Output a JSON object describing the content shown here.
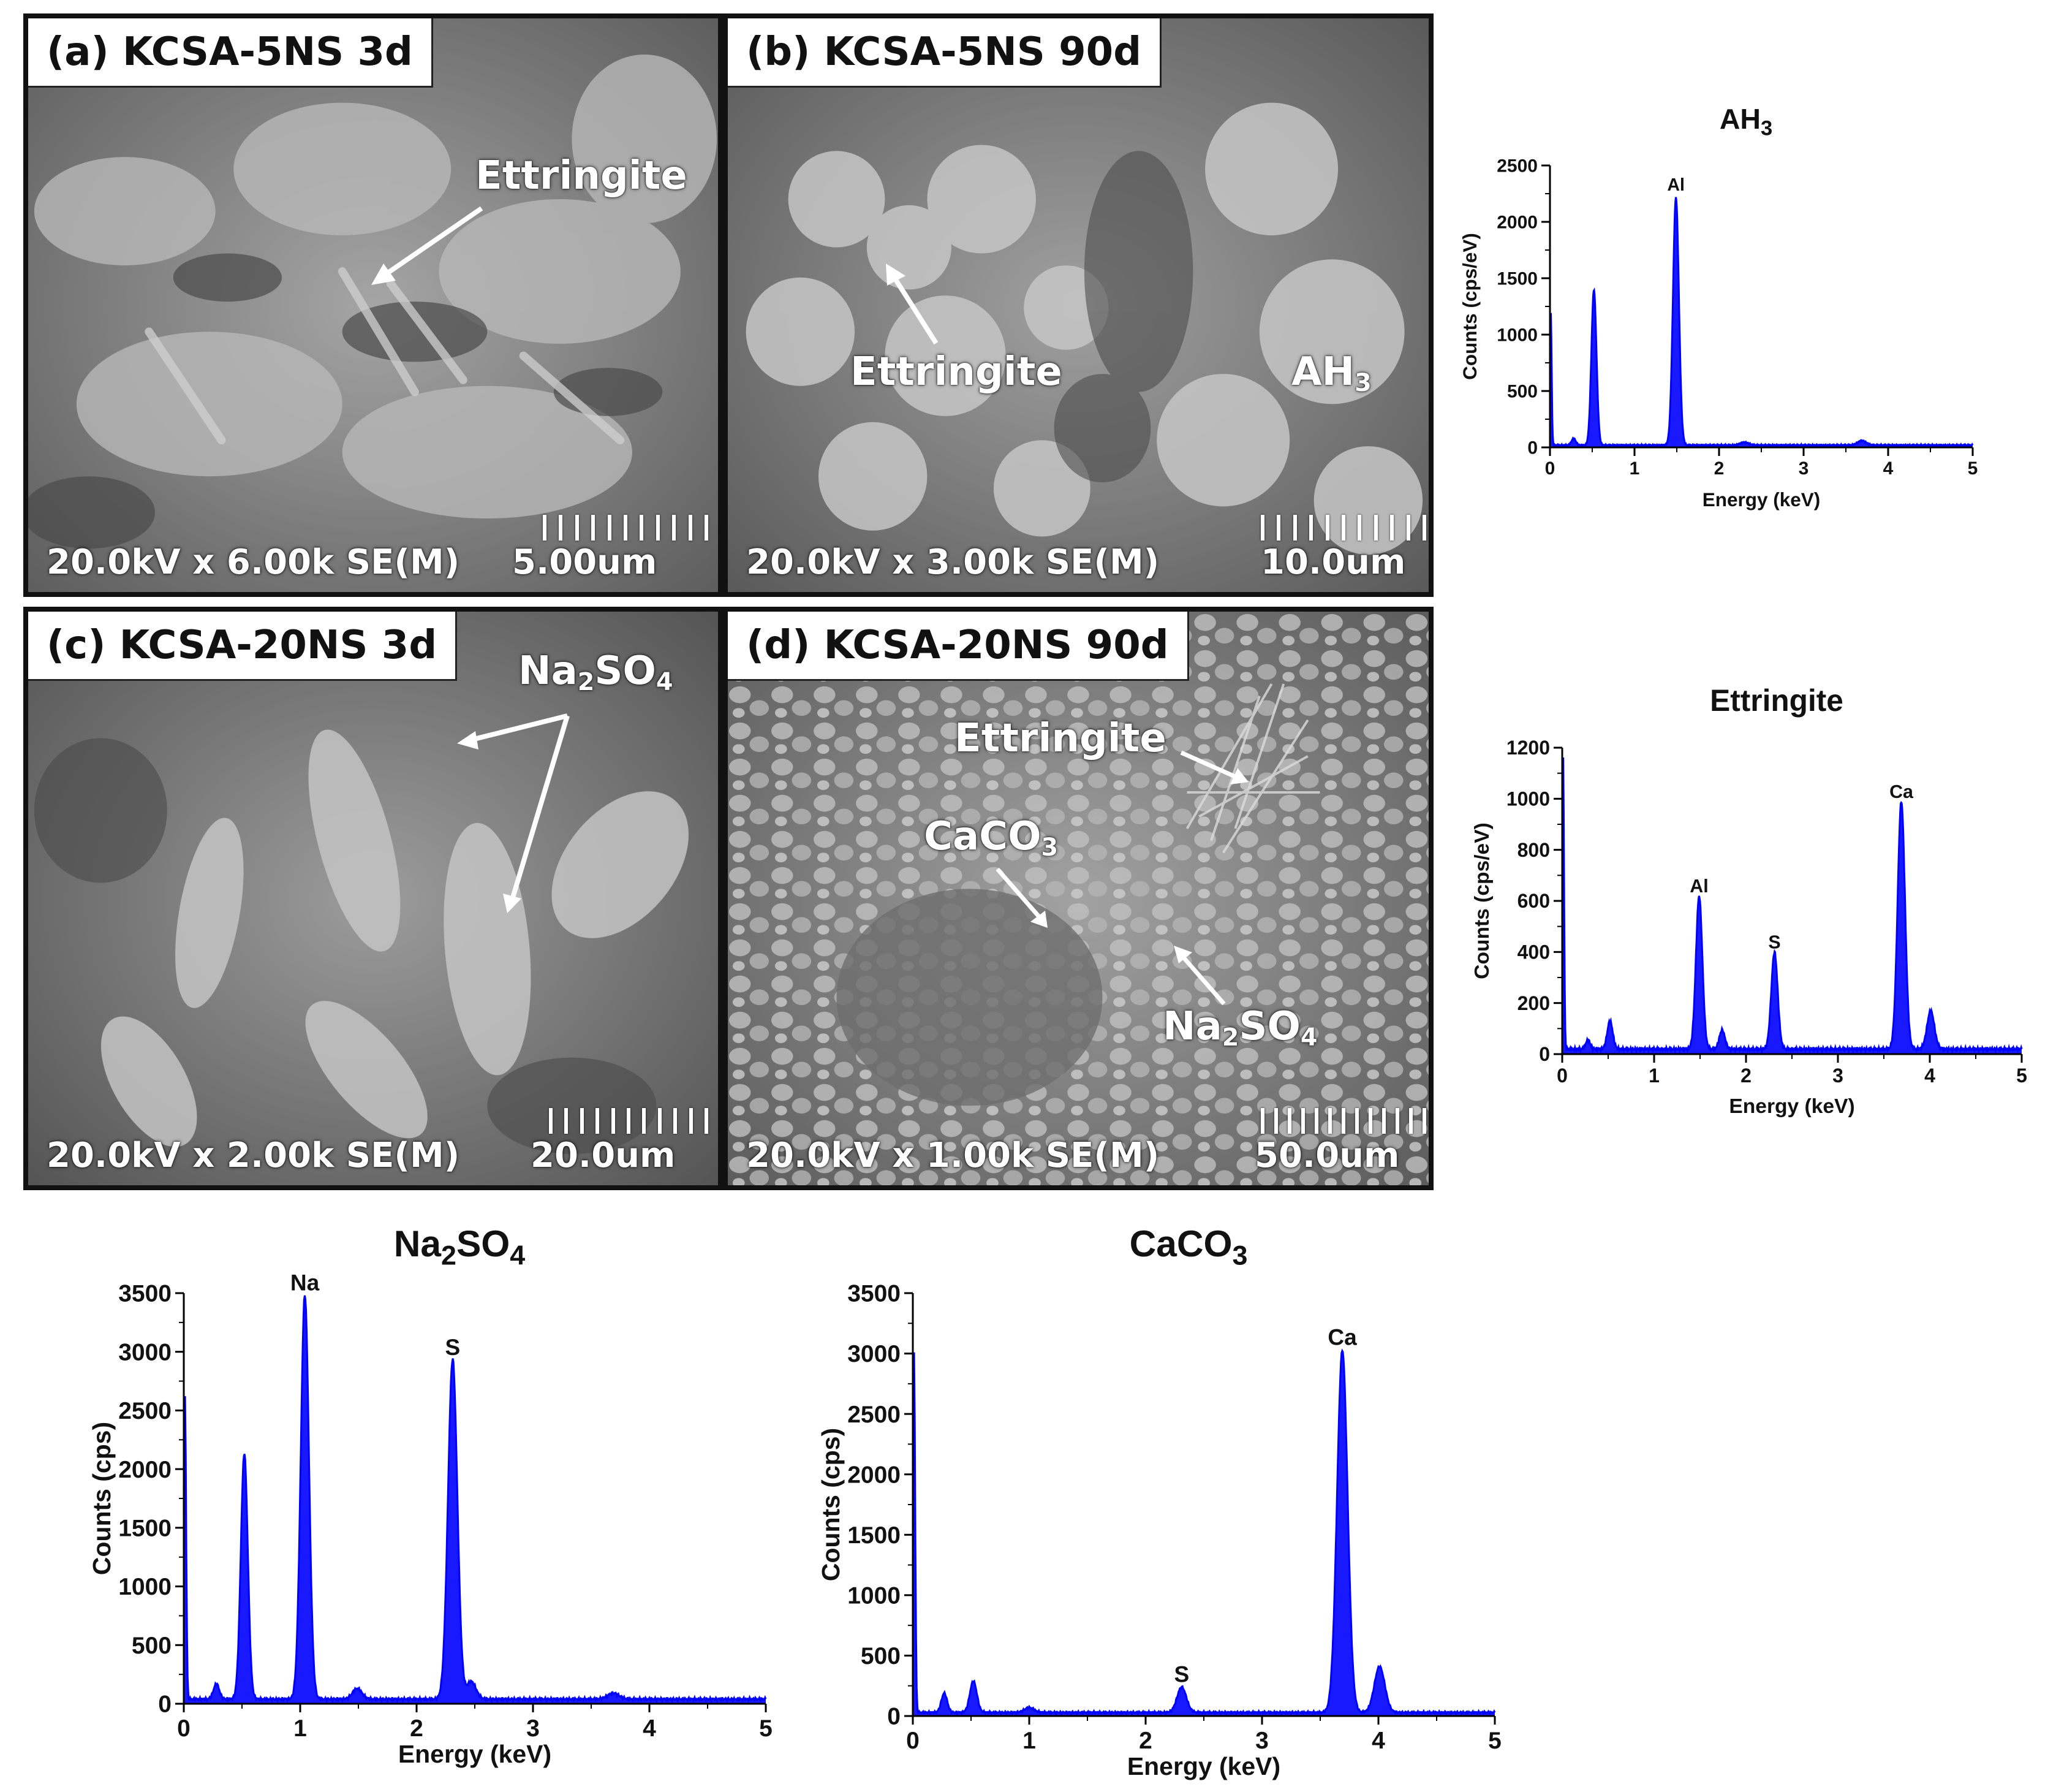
{
  "panels": {
    "a": {
      "label": "(a) KCSA-5NS 3d",
      "magnification": "20.0kV x 6.00k SE(M)",
      "scalebar": "5.00um",
      "annotations": {
        "ettringite": "Ettringite"
      }
    },
    "b": {
      "label": "(b) KCSA-5NS 90d",
      "magnification": "20.0kV x 3.00k SE(M)",
      "scalebar": "10.0um",
      "annotations": {
        "ettringite": "Ettringite",
        "ah3": "AH",
        "ah3_sub": "3"
      }
    },
    "c": {
      "label": "(c) KCSA-20NS 3d",
      "magnification": "20.0kV x 2.00k SE(M)",
      "scalebar": "20.0um",
      "annotations": {
        "na2so4_a": "Na",
        "na2so4_sub1": "2",
        "na2so4_b": "SO",
        "na2so4_sub2": "4"
      }
    },
    "d": {
      "label": "(d) KCSA-20NS 90d",
      "magnification": "20.0kV x 1.00k SE(M)",
      "scalebar": "50.0um",
      "annotations": {
        "ettringite": "Ettringite",
        "caco3_a": "CaCO",
        "caco3_sub": "3",
        "na2so4_a": "Na",
        "na2so4_sub1": "2",
        "na2so4_b": "SO",
        "na2so4_sub2": "4"
      }
    }
  },
  "chart_data": [
    {
      "type": "line",
      "id": "AH3",
      "title": "AH3",
      "title_main": "AH",
      "title_sub": "3",
      "xlabel": "Energy (keV)",
      "ylabel": "Counts (cps/eV)",
      "xlim": [
        0,
        5
      ],
      "ylim": [
        0,
        2500
      ],
      "xticks": [
        0,
        1,
        2,
        3,
        4,
        5
      ],
      "yticks": [
        0,
        500,
        1000,
        1500,
        2000,
        2500
      ],
      "color": "#0000ff",
      "baseline": 20,
      "peaks": [
        {
          "x": 0.01,
          "y": 1180,
          "w": 0.01
        },
        {
          "x": 0.28,
          "y": 60,
          "w": 0.025
        },
        {
          "x": 0.52,
          "y": 1380,
          "w": 0.03
        },
        {
          "x": 1.49,
          "y": 2200,
          "w": 0.035
        },
        {
          "x": 2.3,
          "y": 25,
          "w": 0.05
        },
        {
          "x": 3.69,
          "y": 40,
          "w": 0.05
        }
      ],
      "peak_labels": [
        {
          "text": "Al",
          "x": 1.49,
          "y": 2200
        }
      ]
    },
    {
      "type": "line",
      "id": "Ettringite",
      "title": "Ettringite",
      "title_main": "Ettringite",
      "title_sub": "",
      "xlabel": "Energy (keV)",
      "ylabel": "Counts (cps/eV)",
      "xlim": [
        0,
        5
      ],
      "ylim": [
        0,
        1200
      ],
      "xticks": [
        0,
        1,
        2,
        3,
        4,
        5
      ],
      "yticks": [
        0,
        200,
        400,
        600,
        800,
        1000,
        1200
      ],
      "color": "#0000ff",
      "baseline": 20,
      "peaks": [
        {
          "x": 0.01,
          "y": 1150,
          "w": 0.01
        },
        {
          "x": 0.28,
          "y": 35,
          "w": 0.025
        },
        {
          "x": 0.52,
          "y": 110,
          "w": 0.03
        },
        {
          "x": 1.49,
          "y": 600,
          "w": 0.035
        },
        {
          "x": 1.74,
          "y": 75,
          "w": 0.03
        },
        {
          "x": 2.31,
          "y": 380,
          "w": 0.035
        },
        {
          "x": 3.69,
          "y": 970,
          "w": 0.04
        },
        {
          "x": 4.01,
          "y": 150,
          "w": 0.04
        }
      ],
      "peak_labels": [
        {
          "text": "Al",
          "x": 1.49,
          "y": 600
        },
        {
          "text": "S",
          "x": 2.31,
          "y": 380
        },
        {
          "text": "Ca",
          "x": 3.69,
          "y": 970
        }
      ]
    },
    {
      "type": "line",
      "id": "Na2SO4",
      "title": "Na2SO4",
      "title_main": "Na",
      "title_sub": "2",
      "title_main2": "SO",
      "title_sub2": "4",
      "xlabel": "Energy (keV)",
      "ylabel": "Counts (cps)",
      "xlim": [
        0,
        5
      ],
      "ylim": [
        0,
        3500
      ],
      "xticks": [
        0,
        1,
        2,
        3,
        4,
        5
      ],
      "yticks": [
        0,
        500,
        1000,
        1500,
        2000,
        2500,
        3000,
        3500
      ],
      "color": "#0000ff",
      "baseline": 40,
      "peaks": [
        {
          "x": 0.01,
          "y": 2600,
          "w": 0.01
        },
        {
          "x": 0.28,
          "y": 130,
          "w": 0.025
        },
        {
          "x": 0.52,
          "y": 2100,
          "w": 0.03
        },
        {
          "x": 1.04,
          "y": 3450,
          "w": 0.035
        },
        {
          "x": 1.49,
          "y": 90,
          "w": 0.04
        },
        {
          "x": 2.31,
          "y": 2900,
          "w": 0.04
        },
        {
          "x": 2.47,
          "y": 150,
          "w": 0.04
        },
        {
          "x": 3.69,
          "y": 50,
          "w": 0.05
        }
      ],
      "peak_labels": [
        {
          "text": "Na",
          "x": 1.04,
          "y": 3450
        },
        {
          "text": "S",
          "x": 2.31,
          "y": 2900
        }
      ]
    },
    {
      "type": "line",
      "id": "CaCO3",
      "title": "CaCO3",
      "title_main": "CaCO",
      "title_sub": "3",
      "xlabel": "Energy (keV)",
      "ylabel": "Counts (cps)",
      "xlim": [
        0,
        5
      ],
      "ylim": [
        0,
        3500
      ],
      "xticks": [
        0,
        1,
        2,
        3,
        4,
        5
      ],
      "yticks": [
        0,
        500,
        1000,
        1500,
        2000,
        2500,
        3000,
        3500
      ],
      "color": "#0000ff",
      "baseline": 30,
      "peaks": [
        {
          "x": 0.01,
          "y": 3000,
          "w": 0.01
        },
        {
          "x": 0.27,
          "y": 160,
          "w": 0.025
        },
        {
          "x": 0.52,
          "y": 260,
          "w": 0.03
        },
        {
          "x": 1.0,
          "y": 40,
          "w": 0.04
        },
        {
          "x": 2.31,
          "y": 210,
          "w": 0.04
        },
        {
          "x": 3.69,
          "y": 3000,
          "w": 0.045
        },
        {
          "x": 4.01,
          "y": 380,
          "w": 0.045
        }
      ],
      "peak_labels": [
        {
          "text": "S",
          "x": 2.31,
          "y": 210
        },
        {
          "text": "Ca",
          "x": 3.69,
          "y": 3000
        }
      ]
    }
  ]
}
